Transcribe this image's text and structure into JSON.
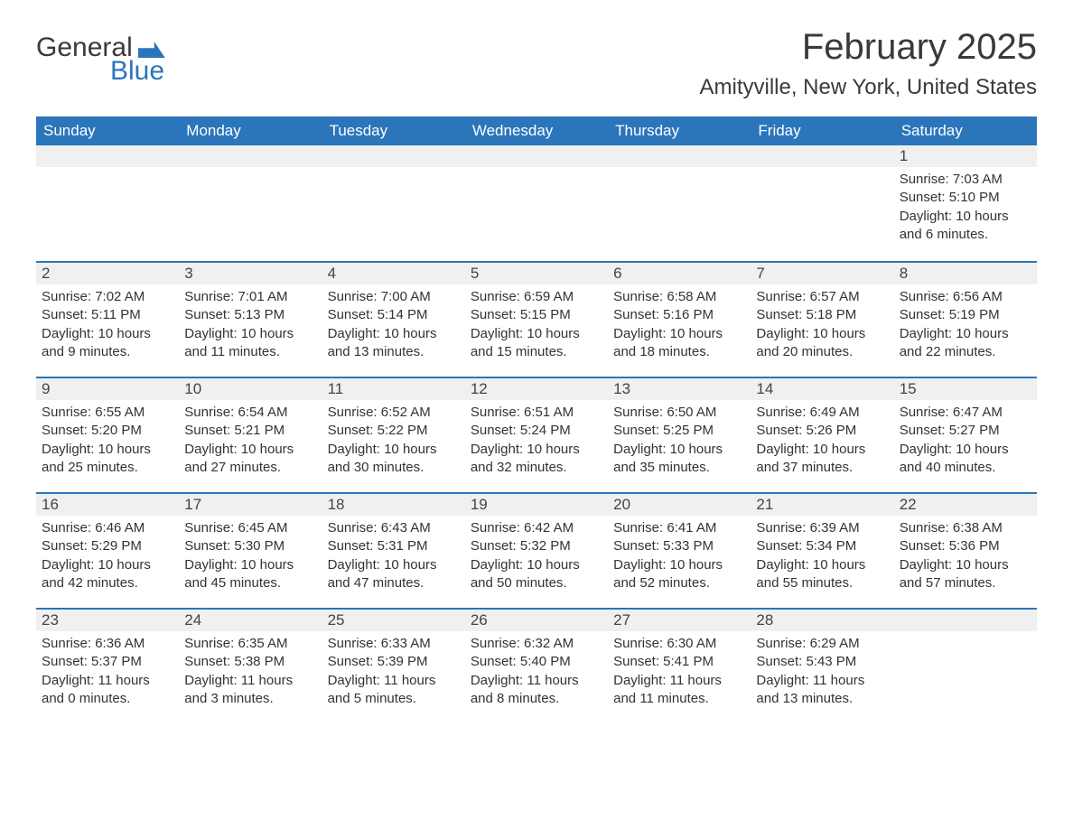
{
  "brand": {
    "word1": "General",
    "word2": "Blue"
  },
  "title": "February 2025",
  "location": "Amityville, New York, United States",
  "colors": {
    "accent": "#2b75bb",
    "header_bg": "#2b75bb",
    "header_text": "#ffffff",
    "daynum_bg": "#f0f0f0",
    "text": "#333333",
    "background": "#ffffff"
  },
  "weekdays": [
    "Sunday",
    "Monday",
    "Tuesday",
    "Wednesday",
    "Thursday",
    "Friday",
    "Saturday"
  ],
  "weeks": [
    [
      null,
      null,
      null,
      null,
      null,
      null,
      {
        "n": "1",
        "sr": "Sunrise: 7:03 AM",
        "ss": "Sunset: 5:10 PM",
        "dl": "Daylight: 10 hours and 6 minutes."
      }
    ],
    [
      {
        "n": "2",
        "sr": "Sunrise: 7:02 AM",
        "ss": "Sunset: 5:11 PM",
        "dl": "Daylight: 10 hours and 9 minutes."
      },
      {
        "n": "3",
        "sr": "Sunrise: 7:01 AM",
        "ss": "Sunset: 5:13 PM",
        "dl": "Daylight: 10 hours and 11 minutes."
      },
      {
        "n": "4",
        "sr": "Sunrise: 7:00 AM",
        "ss": "Sunset: 5:14 PM",
        "dl": "Daylight: 10 hours and 13 minutes."
      },
      {
        "n": "5",
        "sr": "Sunrise: 6:59 AM",
        "ss": "Sunset: 5:15 PM",
        "dl": "Daylight: 10 hours and 15 minutes."
      },
      {
        "n": "6",
        "sr": "Sunrise: 6:58 AM",
        "ss": "Sunset: 5:16 PM",
        "dl": "Daylight: 10 hours and 18 minutes."
      },
      {
        "n": "7",
        "sr": "Sunrise: 6:57 AM",
        "ss": "Sunset: 5:18 PM",
        "dl": "Daylight: 10 hours and 20 minutes."
      },
      {
        "n": "8",
        "sr": "Sunrise: 6:56 AM",
        "ss": "Sunset: 5:19 PM",
        "dl": "Daylight: 10 hours and 22 minutes."
      }
    ],
    [
      {
        "n": "9",
        "sr": "Sunrise: 6:55 AM",
        "ss": "Sunset: 5:20 PM",
        "dl": "Daylight: 10 hours and 25 minutes."
      },
      {
        "n": "10",
        "sr": "Sunrise: 6:54 AM",
        "ss": "Sunset: 5:21 PM",
        "dl": "Daylight: 10 hours and 27 minutes."
      },
      {
        "n": "11",
        "sr": "Sunrise: 6:52 AM",
        "ss": "Sunset: 5:22 PM",
        "dl": "Daylight: 10 hours and 30 minutes."
      },
      {
        "n": "12",
        "sr": "Sunrise: 6:51 AM",
        "ss": "Sunset: 5:24 PM",
        "dl": "Daylight: 10 hours and 32 minutes."
      },
      {
        "n": "13",
        "sr": "Sunrise: 6:50 AM",
        "ss": "Sunset: 5:25 PM",
        "dl": "Daylight: 10 hours and 35 minutes."
      },
      {
        "n": "14",
        "sr": "Sunrise: 6:49 AM",
        "ss": "Sunset: 5:26 PM",
        "dl": "Daylight: 10 hours and 37 minutes."
      },
      {
        "n": "15",
        "sr": "Sunrise: 6:47 AM",
        "ss": "Sunset: 5:27 PM",
        "dl": "Daylight: 10 hours and 40 minutes."
      }
    ],
    [
      {
        "n": "16",
        "sr": "Sunrise: 6:46 AM",
        "ss": "Sunset: 5:29 PM",
        "dl": "Daylight: 10 hours and 42 minutes."
      },
      {
        "n": "17",
        "sr": "Sunrise: 6:45 AM",
        "ss": "Sunset: 5:30 PM",
        "dl": "Daylight: 10 hours and 45 minutes."
      },
      {
        "n": "18",
        "sr": "Sunrise: 6:43 AM",
        "ss": "Sunset: 5:31 PM",
        "dl": "Daylight: 10 hours and 47 minutes."
      },
      {
        "n": "19",
        "sr": "Sunrise: 6:42 AM",
        "ss": "Sunset: 5:32 PM",
        "dl": "Daylight: 10 hours and 50 minutes."
      },
      {
        "n": "20",
        "sr": "Sunrise: 6:41 AM",
        "ss": "Sunset: 5:33 PM",
        "dl": "Daylight: 10 hours and 52 minutes."
      },
      {
        "n": "21",
        "sr": "Sunrise: 6:39 AM",
        "ss": "Sunset: 5:34 PM",
        "dl": "Daylight: 10 hours and 55 minutes."
      },
      {
        "n": "22",
        "sr": "Sunrise: 6:38 AM",
        "ss": "Sunset: 5:36 PM",
        "dl": "Daylight: 10 hours and 57 minutes."
      }
    ],
    [
      {
        "n": "23",
        "sr": "Sunrise: 6:36 AM",
        "ss": "Sunset: 5:37 PM",
        "dl": "Daylight: 11 hours and 0 minutes."
      },
      {
        "n": "24",
        "sr": "Sunrise: 6:35 AM",
        "ss": "Sunset: 5:38 PM",
        "dl": "Daylight: 11 hours and 3 minutes."
      },
      {
        "n": "25",
        "sr": "Sunrise: 6:33 AM",
        "ss": "Sunset: 5:39 PM",
        "dl": "Daylight: 11 hours and 5 minutes."
      },
      {
        "n": "26",
        "sr": "Sunrise: 6:32 AM",
        "ss": "Sunset: 5:40 PM",
        "dl": "Daylight: 11 hours and 8 minutes."
      },
      {
        "n": "27",
        "sr": "Sunrise: 6:30 AM",
        "ss": "Sunset: 5:41 PM",
        "dl": "Daylight: 11 hours and 11 minutes."
      },
      {
        "n": "28",
        "sr": "Sunrise: 6:29 AM",
        "ss": "Sunset: 5:43 PM",
        "dl": "Daylight: 11 hours and 13 minutes."
      },
      null
    ]
  ]
}
